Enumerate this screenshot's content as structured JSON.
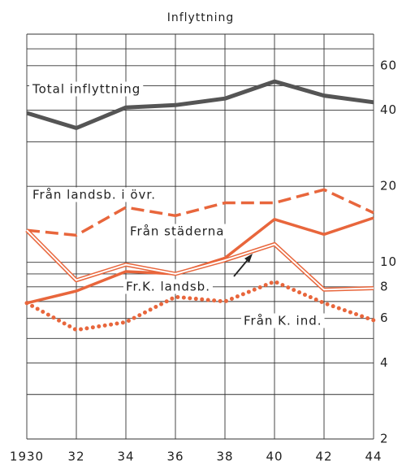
{
  "chart_data": {
    "type": "line",
    "title": "Inflyttning",
    "x": [
      1930,
      1932,
      1934,
      1936,
      1938,
      1940,
      1942,
      1944
    ],
    "xlim": [
      1930,
      1944
    ],
    "xticks": [
      1930,
      {
        "value": 1932,
        "label": "32"
      },
      {
        "value": 1934,
        "label": "34"
      },
      {
        "value": 1936,
        "label": "36"
      },
      {
        "value": 1938,
        "label": "38"
      },
      {
        "value": 1940,
        "label": "40"
      },
      {
        "value": 1942,
        "label": "42"
      },
      {
        "value": 1944,
        "label": "44"
      }
    ],
    "ylim": [
      2,
      80
    ],
    "log_y": true,
    "yticks": [
      2,
      4,
      6,
      8,
      10,
      20,
      40,
      60
    ],
    "yminor": [
      3,
      5,
      7,
      9,
      30,
      50,
      70,
      80
    ],
    "grid": true,
    "series": [
      {
        "name": "Total inflyttning",
        "color": "#555555",
        "style": "solid",
        "values": [
          39,
          34,
          41,
          41.9,
          44.5,
          52,
          45.7,
          43
        ]
      },
      {
        "name": "Från landsb. i övr.",
        "color": "#e8663c",
        "style": "dashed",
        "values": [
          13.4,
          12.8,
          16.5,
          15.3,
          17.2,
          17.2,
          19.4,
          15.7
        ]
      },
      {
        "name": "Från städerna",
        "color": "#e8663c",
        "style": "solid",
        "values": [
          6.9,
          7.7,
          9.2,
          9.0,
          10.4,
          14.8,
          12.9,
          15.0
        ]
      },
      {
        "name": "Fr.K. landsb.",
        "color": "#e8663c",
        "style": "double",
        "values": [
          13.4,
          8.5,
          9.8,
          9.0,
          10.2,
          11.8,
          7.8,
          7.9
        ]
      },
      {
        "name": "Från K. ind.",
        "color": "#e8663c",
        "style": "dotted",
        "values": [
          6.9,
          5.4,
          5.8,
          7.3,
          7.0,
          8.4,
          6.9,
          5.9
        ]
      }
    ]
  }
}
